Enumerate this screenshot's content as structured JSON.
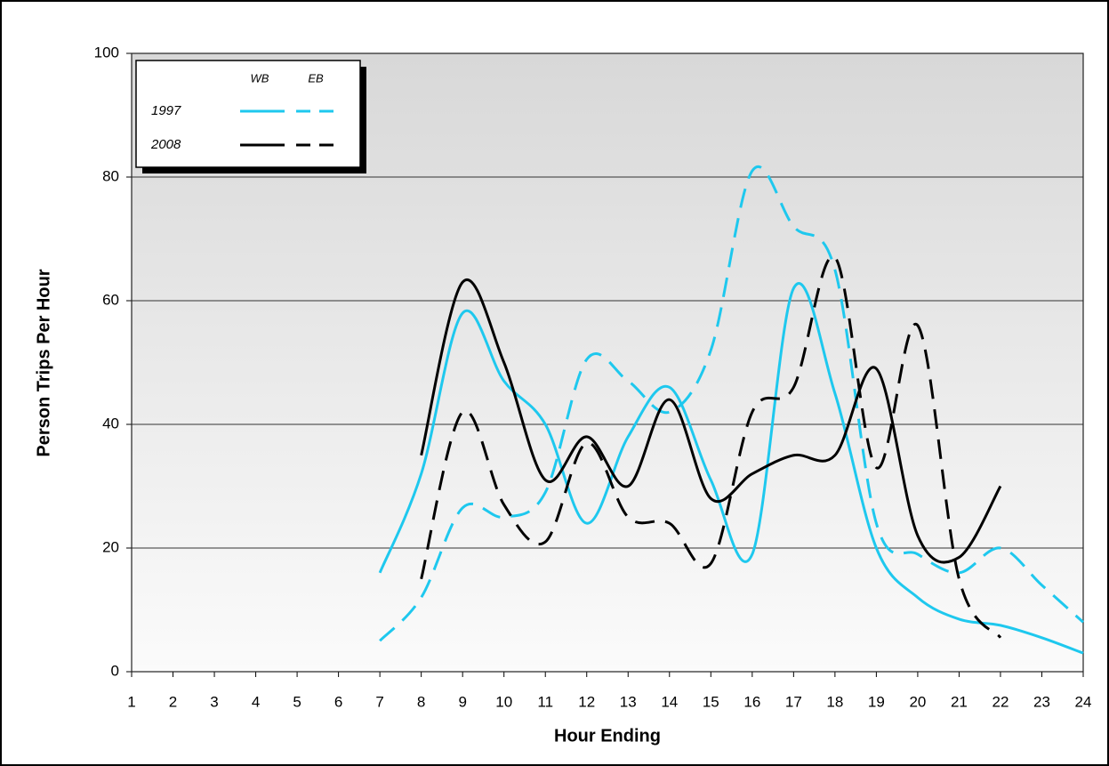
{
  "chart_data": {
    "type": "line",
    "x_label": "Hour Ending",
    "y_label": "Person Trips Per Hour",
    "x": [
      1,
      2,
      3,
      4,
      5,
      6,
      7,
      8,
      9,
      10,
      11,
      12,
      13,
      14,
      15,
      16,
      17,
      18,
      19,
      20,
      21,
      22,
      23,
      24
    ],
    "xlim": [
      1,
      24
    ],
    "xticks": [
      1,
      2,
      3,
      4,
      5,
      6,
      7,
      8,
      9,
      10,
      11,
      12,
      13,
      14,
      15,
      16,
      17,
      18,
      19,
      20,
      21,
      22,
      23,
      24
    ],
    "ylim": [
      0,
      100
    ],
    "yticks": [
      0,
      20,
      40,
      60,
      80,
      100
    ],
    "grid": true,
    "legend": {
      "columns": [
        "WB",
        "EB"
      ],
      "rows": [
        "1997",
        "2008"
      ]
    },
    "series": [
      {
        "color": "#1ec8ee",
        "dashed": false,
        "values": [
          null,
          null,
          null,
          null,
          null,
          null,
          16,
          32,
          58,
          47,
          40,
          24,
          38,
          46,
          31,
          19,
          62,
          45,
          20,
          12,
          8.5,
          7.5,
          5.5,
          3
        ]
      },
      {
        "color": "#1ec8ee",
        "dashed": true,
        "values": [
          null,
          null,
          null,
          null,
          null,
          null,
          5,
          12,
          26.5,
          25,
          29,
          50.5,
          47,
          42,
          52,
          81,
          72,
          65,
          24,
          19,
          16,
          20,
          14,
          8
        ]
      },
      {
        "color": "#000000",
        "dashed": false,
        "values": [
          null,
          null,
          null,
          null,
          null,
          null,
          null,
          35,
          63,
          50,
          31,
          38,
          30,
          44,
          28,
          32,
          35,
          35,
          49,
          22,
          18.5,
          30,
          null,
          null
        ]
      },
      {
        "color": "#000000",
        "dashed": true,
        "values": [
          null,
          null,
          null,
          null,
          null,
          null,
          null,
          15,
          42,
          27,
          21,
          37,
          25,
          24,
          17.5,
          42,
          46,
          67,
          33,
          56,
          15,
          5.5,
          null,
          null
        ]
      }
    ]
  }
}
